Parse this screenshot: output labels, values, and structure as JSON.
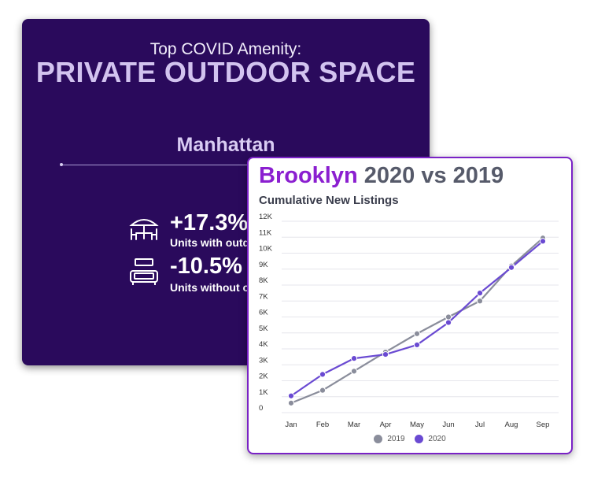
{
  "manhattan": {
    "kicker": "Top COVID Amenity:",
    "headline": "PRIVATE OUTDOOR SPACE",
    "region": "Manhattan",
    "stats": [
      {
        "value": "+17.3%",
        "label": "Units with outd",
        "icon": "outdoor-table-umbrella-icon"
      },
      {
        "value": "-10.5%",
        "label": "Units without o",
        "icon": "indoor-sofa-icon"
      }
    ]
  },
  "brooklyn": {
    "borough": "Brooklyn",
    "title_rest": " 2020 vs 2019",
    "subtitle": "Cumulative New Listings"
  },
  "colors": {
    "s2019": "#8a8d9b",
    "s2020": "#6a4ad2",
    "accent": "#8b1fd0",
    "card_bg": "#2a0a5c"
  },
  "chart_data": {
    "type": "line",
    "categories": [
      "Jan",
      "Feb",
      "Mar",
      "Apr",
      "May",
      "Jun",
      "Jul",
      "Aug",
      "Sep"
    ],
    "series": [
      {
        "name": "2019",
        "values": [
          600,
          1400,
          2600,
          3800,
          4950,
          6000,
          7000,
          9200,
          10950
        ]
      },
      {
        "name": "2020",
        "values": [
          1050,
          2400,
          3400,
          3650,
          4250,
          5650,
          7500,
          9100,
          10750
        ]
      }
    ],
    "ylim": [
      0,
      12000
    ],
    "yticks": [
      0,
      1000,
      2000,
      3000,
      4000,
      5000,
      6000,
      7000,
      8000,
      9000,
      10000,
      11000,
      12000
    ],
    "ytick_labels": [
      "0",
      "1K",
      "2K",
      "3K",
      "4K",
      "5K",
      "6K",
      "7K",
      "8K",
      "9K",
      "10K",
      "11K",
      "12K"
    ],
    "grid": true,
    "legend": "bottom"
  }
}
